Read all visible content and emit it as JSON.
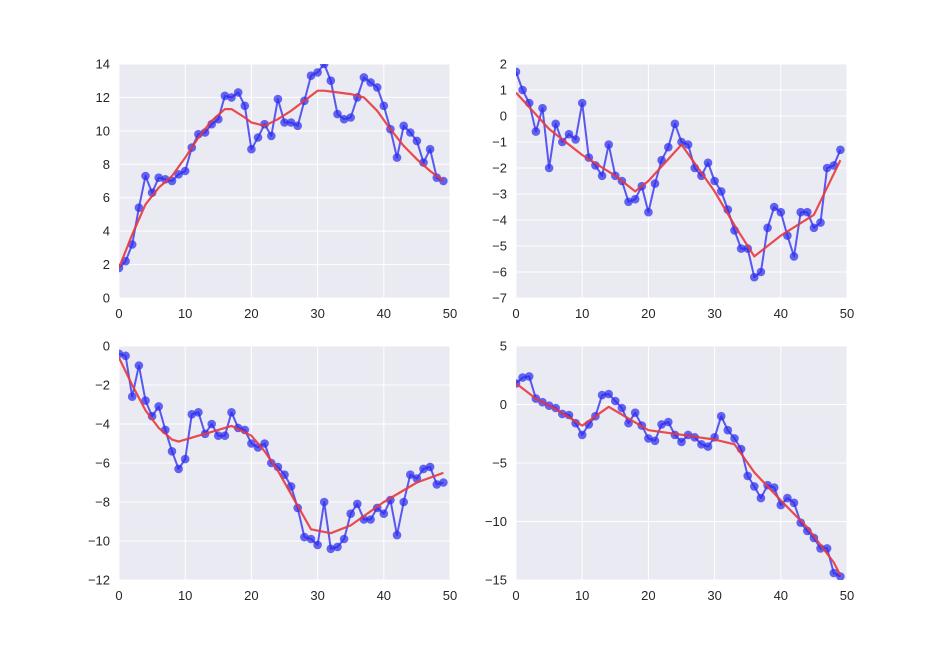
{
  "figure": {
    "colors": {
      "background": "#eaeaf2",
      "grid": "#ffffff",
      "data_series": "#2e2ef0",
      "smooth_series": "#e8383d",
      "text": "#262626"
    }
  },
  "chart_data": [
    {
      "type": "line",
      "xlim": [
        0,
        50
      ],
      "ylim": [
        0,
        14
      ],
      "xticks": [
        0,
        10,
        20,
        30,
        40,
        50
      ],
      "yticks": [
        0,
        2,
        4,
        6,
        8,
        10,
        12,
        14
      ],
      "grid": true,
      "series": [
        {
          "role": "data",
          "marker": "circle",
          "x": [
            0,
            1,
            2,
            3,
            4,
            5,
            6,
            7,
            8,
            9,
            10,
            11,
            12,
            13,
            14,
            15,
            16,
            17,
            18,
            19,
            20,
            21,
            22,
            23,
            24,
            25,
            26,
            27,
            28,
            29,
            30,
            31,
            32,
            33,
            34,
            35,
            36,
            37,
            38,
            39,
            40,
            41,
            42,
            43,
            44,
            45,
            46,
            47,
            48,
            49
          ],
          "y": [
            1.8,
            2.2,
            3.2,
            5.4,
            7.3,
            6.3,
            7.2,
            7.1,
            7.0,
            7.4,
            7.6,
            9.0,
            9.8,
            9.9,
            10.4,
            10.7,
            12.1,
            12.0,
            12.3,
            11.5,
            8.9,
            9.6,
            10.4,
            9.7,
            11.9,
            10.5,
            10.5,
            10.3,
            11.8,
            13.3,
            13.5,
            14.0,
            13.0,
            11.0,
            10.7,
            10.8,
            12.0,
            13.2,
            12.9,
            12.6,
            11.5,
            10.1,
            8.4,
            10.3,
            9.9,
            9.4,
            8.1,
            8.9,
            7.2,
            7.0
          ]
        },
        {
          "role": "smoothed",
          "x": [
            0,
            2,
            4,
            6,
            8,
            10,
            12,
            14,
            16,
            17,
            19,
            20,
            22,
            24,
            26,
            28,
            30,
            31,
            33,
            35,
            37,
            39,
            41,
            43,
            45,
            47,
            49
          ],
          "y": [
            1.8,
            3.8,
            5.6,
            6.6,
            7.3,
            8.4,
            9.6,
            10.6,
            11.3,
            11.3,
            10.8,
            10.5,
            10.3,
            10.7,
            11.2,
            11.8,
            12.4,
            12.4,
            12.3,
            12.2,
            12.0,
            11.2,
            10.1,
            9.1,
            8.3,
            7.6,
            7.0
          ]
        }
      ]
    },
    {
      "type": "line",
      "xlim": [
        0,
        50
      ],
      "ylim": [
        -7,
        2
      ],
      "xticks": [
        0,
        10,
        20,
        30,
        40,
        50
      ],
      "yticks": [
        -7,
        -6,
        -5,
        -4,
        -3,
        -2,
        -1,
        0,
        1,
        2
      ],
      "grid": true,
      "series": [
        {
          "role": "data",
          "marker": "circle",
          "x": [
            0,
            1,
            2,
            3,
            4,
            5,
            6,
            7,
            8,
            9,
            10,
            11,
            12,
            13,
            14,
            15,
            16,
            17,
            18,
            19,
            20,
            21,
            22,
            23,
            24,
            25,
            26,
            27,
            28,
            29,
            30,
            31,
            32,
            33,
            34,
            35,
            36,
            37,
            38,
            39,
            40,
            41,
            42,
            43,
            44,
            45,
            46,
            47,
            48,
            49
          ],
          "y": [
            1.7,
            1.0,
            0.5,
            -0.6,
            0.3,
            -2.0,
            -0.3,
            -1.0,
            -0.7,
            -0.9,
            0.5,
            -1.6,
            -1.9,
            -2.3,
            -1.1,
            -2.3,
            -2.5,
            -3.3,
            -3.2,
            -2.7,
            -3.7,
            -2.6,
            -1.7,
            -1.2,
            -0.3,
            -1.0,
            -1.1,
            -2.0,
            -2.3,
            -1.8,
            -2.5,
            -2.9,
            -3.6,
            -4.4,
            -5.1,
            -5.1,
            -6.2,
            -6.0,
            -4.3,
            -3.5,
            -3.7,
            -4.6,
            -5.4,
            -3.7,
            -3.7,
            -4.3,
            -4.1,
            -2.0,
            -1.9,
            -1.3
          ]
        },
        {
          "role": "smoothed",
          "x": [
            0,
            5,
            10,
            15,
            18,
            20,
            25,
            30,
            33,
            36,
            40,
            45,
            49
          ],
          "y": [
            0.9,
            -0.5,
            -1.5,
            -2.3,
            -2.9,
            -2.5,
            -1.1,
            -2.9,
            -4.2,
            -5.4,
            -4.6,
            -3.8,
            -1.7
          ]
        }
      ]
    },
    {
      "type": "line",
      "xlim": [
        0,
        50
      ],
      "ylim": [
        -12,
        0
      ],
      "xticks": [
        0,
        10,
        20,
        30,
        40,
        50
      ],
      "yticks": [
        -12,
        -10,
        -8,
        -6,
        -4,
        -2,
        0
      ],
      "grid": true,
      "series": [
        {
          "role": "data",
          "marker": "circle",
          "x": [
            0,
            1,
            2,
            3,
            4,
            5,
            6,
            7,
            8,
            9,
            10,
            11,
            12,
            13,
            14,
            15,
            16,
            17,
            18,
            19,
            20,
            21,
            22,
            23,
            24,
            25,
            26,
            27,
            28,
            29,
            30,
            31,
            32,
            33,
            34,
            35,
            36,
            37,
            38,
            39,
            40,
            41,
            42,
            43,
            44,
            45,
            46,
            47,
            48,
            49
          ],
          "y": [
            -0.4,
            -0.5,
            -2.6,
            -1.0,
            -2.8,
            -3.6,
            -3.1,
            -4.3,
            -5.4,
            -6.3,
            -5.8,
            -3.5,
            -3.4,
            -4.5,
            -4.0,
            -4.6,
            -4.6,
            -3.4,
            -4.2,
            -4.3,
            -5.0,
            -5.2,
            -5.0,
            -6.0,
            -6.2,
            -6.6,
            -7.2,
            -8.3,
            -9.8,
            -9.9,
            -10.2,
            -8.0,
            -10.4,
            -10.3,
            -9.9,
            -8.6,
            -8.1,
            -8.9,
            -8.9,
            -8.3,
            -8.6,
            -7.9,
            -9.7,
            -8.0,
            -6.6,
            -6.8,
            -6.3,
            -6.2,
            -7.1,
            -7.0
          ]
        },
        {
          "role": "smoothed",
          "x": [
            0,
            2,
            4,
            6,
            8,
            9,
            12,
            15,
            17,
            20,
            22,
            24,
            26,
            29,
            32,
            35,
            40,
            45,
            49
          ],
          "y": [
            -0.6,
            -2.0,
            -3.3,
            -4.2,
            -4.8,
            -4.9,
            -4.6,
            -4.3,
            -4.1,
            -4.6,
            -5.4,
            -6.4,
            -7.6,
            -9.4,
            -9.6,
            -9.2,
            -8.0,
            -7.0,
            -6.5
          ]
        }
      ]
    },
    {
      "type": "line",
      "xlim": [
        0,
        50
      ],
      "ylim": [
        -15,
        5
      ],
      "xticks": [
        0,
        10,
        20,
        30,
        40,
        50
      ],
      "yticks": [
        -15,
        -10,
        -5,
        0,
        5
      ],
      "grid": true,
      "series": [
        {
          "role": "data",
          "marker": "circle",
          "x": [
            0,
            1,
            2,
            3,
            4,
            5,
            6,
            7,
            8,
            9,
            10,
            11,
            12,
            13,
            14,
            15,
            16,
            17,
            18,
            19,
            20,
            21,
            22,
            23,
            24,
            25,
            26,
            27,
            28,
            29,
            30,
            31,
            32,
            33,
            34,
            35,
            36,
            37,
            38,
            39,
            40,
            41,
            42,
            43,
            44,
            45,
            46,
            47,
            48,
            49
          ],
          "y": [
            1.8,
            2.3,
            2.4,
            0.5,
            0.2,
            -0.1,
            -0.3,
            -0.8,
            -0.9,
            -1.6,
            -2.6,
            -1.7,
            -1.0,
            0.8,
            0.9,
            0.3,
            -0.3,
            -1.6,
            -0.7,
            -1.8,
            -2.9,
            -3.1,
            -1.7,
            -1.5,
            -2.6,
            -3.2,
            -2.6,
            -2.8,
            -3.4,
            -3.6,
            -2.8,
            -1.0,
            -2.2,
            -2.9,
            -3.8,
            -6.1,
            -7.0,
            -8.0,
            -6.9,
            -7.1,
            -8.6,
            -8.0,
            -8.4,
            -10.1,
            -10.8,
            -11.4,
            -12.3,
            -12.3,
            -14.4,
            -14.7
          ]
        },
        {
          "role": "smoothed",
          "x": [
            0,
            3,
            6,
            10,
            14,
            17,
            20,
            24,
            30,
            33,
            36,
            40,
            44,
            48,
            49
          ],
          "y": [
            1.8,
            0.5,
            -0.4,
            -1.8,
            -0.2,
            -1.2,
            -2.2,
            -2.5,
            -3.0,
            -3.4,
            -5.8,
            -8.2,
            -10.5,
            -13.5,
            -14.6
          ]
        }
      ]
    }
  ]
}
